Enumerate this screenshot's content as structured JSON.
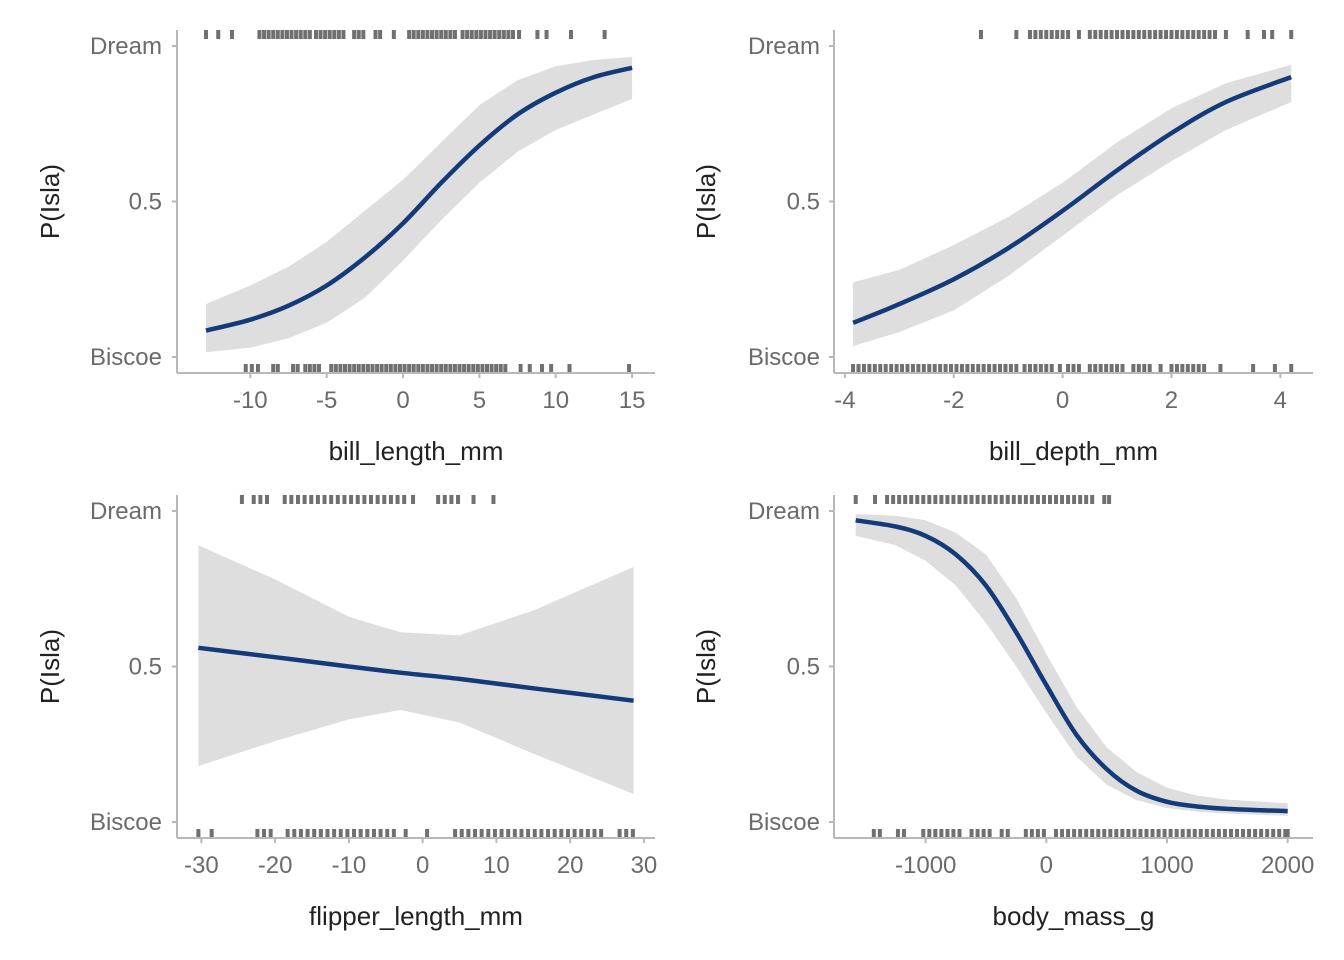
{
  "colors": {
    "line": "#143a7a",
    "band": "#dedede",
    "rug": "#707070",
    "axis": "#b8b8b8",
    "tick_text": "#6b6b6b",
    "title_text": "#222222"
  },
  "chart_data": [
    {
      "type": "line",
      "xlabel": "bill_length_mm",
      "ylabel": "P(Isla)",
      "xlim": [
        -14.8,
        16.5
      ],
      "ylim": [
        0,
        1
      ],
      "x_ticks": [
        -10,
        -5,
        0,
        5,
        10,
        15
      ],
      "x_tick_labels": [
        "-10",
        "-5",
        "0",
        "5",
        "10",
        "15"
      ],
      "y_ticks": [
        0,
        0.5,
        1
      ],
      "y_tick_labels": [
        "Biscoe",
        "0.5",
        "Dream"
      ],
      "series": [
        {
          "x": [
            -12.9,
            -10,
            -7.5,
            -5,
            -2.5,
            0,
            2.5,
            5,
            7.5,
            10,
            12.5,
            15
          ],
          "y": [
            0.085,
            0.12,
            0.165,
            0.23,
            0.32,
            0.43,
            0.56,
            0.68,
            0.78,
            0.85,
            0.9,
            0.93
          ],
          "ci_lower": [
            0.015,
            0.03,
            0.06,
            0.11,
            0.19,
            0.31,
            0.44,
            0.56,
            0.66,
            0.73,
            0.78,
            0.83
          ],
          "ci_upper": [
            0.17,
            0.23,
            0.29,
            0.37,
            0.47,
            0.57,
            0.69,
            0.81,
            0.89,
            0.935,
            0.955,
            0.965
          ]
        }
      ],
      "rug_top": [
        -12.9,
        -12.1,
        -11.2,
        -9.4,
        -9.1,
        -8.8,
        -8.5,
        -8.2,
        -7.9,
        -7.6,
        -7.3,
        -7.0,
        -6.7,
        -6.4,
        -6.1,
        -5.7,
        -5.4,
        -5.1,
        -4.8,
        -4.5,
        -4.2,
        -3.9,
        -3.2,
        -2.9,
        -2.6,
        -1.8,
        -1.5,
        -0.6,
        0.4,
        0.7,
        1.0,
        1.3,
        1.6,
        1.9,
        2.2,
        2.5,
        2.8,
        3.1,
        3.4,
        3.9,
        4.2,
        4.5,
        4.8,
        5.1,
        5.4,
        5.7,
        6.0,
        6.3,
        6.6,
        6.9,
        7.2,
        7.6,
        8.8,
        9.4,
        11.0,
        13.2
      ],
      "rug_bottom": [
        -10.3,
        -9.9,
        -9.5,
        -8.5,
        -8.2,
        -7.2,
        -6.9,
        -6.4,
        -6.1,
        -5.8,
        -5.5,
        -4.7,
        -4.4,
        -4.1,
        -3.8,
        -3.5,
        -3.2,
        -2.9,
        -2.6,
        -2.3,
        -2.0,
        -1.7,
        -1.4,
        -1.1,
        -0.8,
        -0.5,
        -0.2,
        0.1,
        0.4,
        0.7,
        1.0,
        1.3,
        1.6,
        1.9,
        2.2,
        2.5,
        2.8,
        3.1,
        3.4,
        3.7,
        4.0,
        4.3,
        4.6,
        4.9,
        5.2,
        5.5,
        5.8,
        6.1,
        6.4,
        6.7,
        7.7,
        8.3,
        9.1,
        9.7,
        10.9,
        14.8
      ]
    },
    {
      "type": "line",
      "xlabel": "bill_depth_mm",
      "ylabel": "P(Isla)",
      "xlim": [
        -4.2,
        4.6
      ],
      "ylim": [
        0,
        1
      ],
      "x_ticks": [
        -4,
        -2,
        0,
        2,
        4
      ],
      "x_tick_labels": [
        "-4",
        "-2",
        "0",
        "2",
        "4"
      ],
      "y_ticks": [
        0,
        0.5,
        1
      ],
      "y_tick_labels": [
        "Biscoe",
        "0.5",
        "Dream"
      ],
      "series": [
        {
          "x": [
            -3.85,
            -3,
            -2,
            -1,
            0,
            1,
            2,
            3,
            4.2
          ],
          "y": [
            0.11,
            0.17,
            0.25,
            0.35,
            0.47,
            0.6,
            0.72,
            0.82,
            0.9
          ],
          "ci_lower": [
            0.035,
            0.08,
            0.15,
            0.26,
            0.39,
            0.52,
            0.63,
            0.73,
            0.82
          ],
          "ci_upper": [
            0.24,
            0.28,
            0.36,
            0.45,
            0.56,
            0.69,
            0.8,
            0.88,
            0.94
          ]
        }
      ],
      "rug_top": [
        -1.5,
        -0.85,
        -0.6,
        -0.5,
        -0.4,
        -0.3,
        -0.2,
        -0.1,
        0.0,
        0.1,
        0.3,
        0.5,
        0.6,
        0.7,
        0.8,
        0.9,
        1.0,
        1.1,
        1.2,
        1.3,
        1.4,
        1.5,
        1.6,
        1.7,
        1.8,
        1.9,
        2.0,
        2.1,
        2.2,
        2.3,
        2.4,
        2.5,
        2.6,
        2.7,
        2.8,
        3.0,
        3.4,
        3.7,
        3.85,
        4.2
      ],
      "rug_bottom": [
        -3.85,
        -3.75,
        -3.65,
        -3.55,
        -3.45,
        -3.35,
        -3.25,
        -3.15,
        -3.05,
        -2.95,
        -2.85,
        -2.75,
        -2.65,
        -2.55,
        -2.45,
        -2.35,
        -2.25,
        -2.15,
        -2.05,
        -1.95,
        -1.85,
        -1.75,
        -1.65,
        -1.55,
        -1.45,
        -1.35,
        -1.25,
        -1.15,
        -1.05,
        -0.95,
        -0.85,
        -0.7,
        -0.6,
        -0.5,
        -0.4,
        -0.3,
        -0.2,
        -0.05,
        0.1,
        0.2,
        0.3,
        0.5,
        0.6,
        0.7,
        0.8,
        0.9,
        1.0,
        1.1,
        1.3,
        1.4,
        1.5,
        1.6,
        1.8,
        2.0,
        2.1,
        2.2,
        2.3,
        2.4,
        2.5,
        2.6,
        2.9,
        3.5,
        3.9,
        4.2
      ]
    },
    {
      "type": "line",
      "xlabel": "flipper_length_mm",
      "ylabel": "P(Isla)",
      "xlim": [
        -33.3,
        31.5
      ],
      "ylim": [
        0,
        1
      ],
      "x_ticks": [
        -30,
        -20,
        -10,
        0,
        10,
        20,
        30
      ],
      "x_tick_labels": [
        "-30",
        "-20",
        "-10",
        "0",
        "10",
        "20",
        "30"
      ],
      "y_ticks": [
        0,
        0.5,
        1
      ],
      "y_tick_labels": [
        "Biscoe",
        "0.5",
        "Dream"
      ],
      "series": [
        {
          "x": [
            -30.4,
            -20,
            -10,
            -3,
            5,
            15,
            28.6
          ],
          "y": [
            0.56,
            0.53,
            0.5,
            0.48,
            0.46,
            0.43,
            0.39
          ],
          "ci_lower": [
            0.18,
            0.26,
            0.33,
            0.36,
            0.32,
            0.22,
            0.09
          ],
          "ci_upper": [
            0.89,
            0.78,
            0.66,
            0.61,
            0.6,
            0.68,
            0.82
          ]
        }
      ],
      "rug_top": [
        -24.5,
        -22.9,
        -22.0,
        -21.1,
        -18.7,
        -17.8,
        -16.9,
        -16.0,
        -15.1,
        -14.2,
        -13.3,
        -12.4,
        -11.5,
        -10.6,
        -9.7,
        -8.8,
        -7.9,
        -7.0,
        -6.1,
        -5.2,
        -4.3,
        -3.4,
        -2.5,
        -1.3,
        2.1,
        3.0,
        3.9,
        4.8,
        6.9,
        9.6
      ],
      "rug_bottom": [
        -30.4,
        -28.6,
        -22.4,
        -21.5,
        -20.6,
        -18.3,
        -17.4,
        -16.5,
        -15.6,
        -14.7,
        -13.8,
        -12.9,
        -12.0,
        -11.1,
        -10.2,
        -9.3,
        -8.4,
        -7.5,
        -6.6,
        -5.7,
        -4.8,
        -3.9,
        -2.3,
        0.6,
        4.4,
        5.3,
        6.2,
        7.1,
        8.0,
        8.9,
        9.8,
        10.7,
        11.6,
        12.5,
        13.4,
        14.3,
        15.2,
        16.1,
        17.0,
        17.9,
        18.8,
        19.7,
        20.6,
        21.5,
        22.4,
        23.3,
        24.2,
        26.7,
        27.6,
        28.5
      ]
    },
    {
      "type": "line",
      "xlabel": "body_mass_g",
      "ylabel": "P(Isla)",
      "xlim": [
        -1760,
        2210
      ],
      "ylim": [
        0,
        1
      ],
      "x_ticks": [
        -1000,
        0,
        1000,
        2000
      ],
      "x_tick_labels": [
        "-1000",
        "0",
        "1000",
        "2000"
      ],
      "y_ticks": [
        0,
        0.5,
        1
      ],
      "y_tick_labels": [
        "Biscoe",
        "0.5",
        "Dream"
      ],
      "series": [
        {
          "x": [
            -1580,
            -1250,
            -1000,
            -750,
            -500,
            -250,
            0,
            250,
            500,
            750,
            1000,
            1250,
            1500,
            2000
          ],
          "y": [
            0.97,
            0.95,
            0.92,
            0.86,
            0.76,
            0.61,
            0.44,
            0.28,
            0.17,
            0.1,
            0.065,
            0.05,
            0.042,
            0.035
          ],
          "ci_lower": [
            0.92,
            0.89,
            0.84,
            0.76,
            0.64,
            0.5,
            0.35,
            0.21,
            0.12,
            0.07,
            0.045,
            0.033,
            0.027,
            0.02
          ],
          "ci_upper": [
            0.99,
            0.985,
            0.97,
            0.93,
            0.86,
            0.72,
            0.54,
            0.37,
            0.24,
            0.16,
            0.11,
            0.085,
            0.072,
            0.06
          ]
        }
      ],
      "rug_top": [
        -1580,
        -1420,
        -1320,
        -1270,
        -1220,
        -1170,
        -1120,
        -1070,
        -1020,
        -970,
        -920,
        -870,
        -820,
        -770,
        -720,
        -670,
        -620,
        -570,
        -520,
        -470,
        -420,
        -370,
        -320,
        -270,
        -220,
        -170,
        -120,
        -70,
        -20,
        30,
        80,
        130,
        180,
        230,
        280,
        330,
        380,
        480,
        520
      ],
      "rug_bottom": [
        -1430,
        -1380,
        -1230,
        -1180,
        -1020,
        -970,
        -920,
        -870,
        -820,
        -770,
        -720,
        -620,
        -570,
        -520,
        -470,
        -370,
        -320,
        -170,
        -120,
        -70,
        -20,
        80,
        130,
        180,
        230,
        280,
        330,
        380,
        430,
        480,
        530,
        580,
        630,
        680,
        730,
        780,
        830,
        880,
        930,
        980,
        1030,
        1080,
        1130,
        1180,
        1230,
        1280,
        1330,
        1380,
        1430,
        1480,
        1530,
        1580,
        1630,
        1680,
        1730,
        1780,
        1830,
        1880,
        1930,
        1980,
        2000
      ]
    }
  ]
}
